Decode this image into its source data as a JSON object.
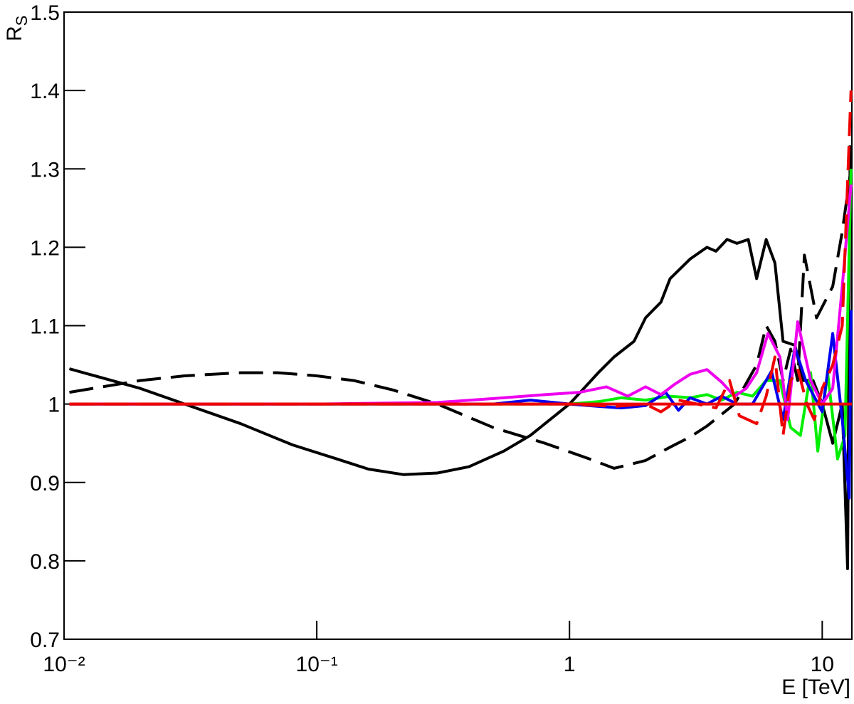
{
  "chart_data": {
    "type": "line",
    "xlabel": "E [TeV]",
    "ylabel": [
      "R",
      "S"
    ],
    "xscale": "log",
    "xlim": [
      0.01,
      13.1
    ],
    "ylim": [
      0.7,
      1.5
    ],
    "xticks": [
      {
        "value": 0.01,
        "label": "10⁻²"
      },
      {
        "value": 0.1,
        "label": "10⁻¹"
      },
      1,
      10
    ],
    "yticks": [
      0.7,
      0.8,
      0.9,
      1,
      1.1,
      1.2,
      1.3,
      1.4,
      1.5
    ],
    "series": [
      {
        "color": "#000000",
        "style": "solid",
        "x": [
          0.0105,
          0.02,
          0.03,
          0.05,
          0.08,
          0.12,
          0.16,
          0.22,
          0.3,
          0.4,
          0.55,
          0.7,
          1,
          1.3,
          1.5,
          1.8,
          2,
          2.3,
          2.5,
          3,
          3.5,
          3.8,
          4.2,
          4.6,
          5.1,
          5.5,
          6,
          6.5,
          7,
          7.8,
          8.4,
          9.2,
          10,
          11,
          12,
          12.6,
          12.9
        ],
        "values": [
          1.045,
          1.02,
          1.0,
          0.975,
          0.948,
          0.93,
          0.917,
          0.91,
          0.912,
          0.92,
          0.94,
          0.96,
          1.0,
          1.04,
          1.06,
          1.08,
          1.11,
          1.13,
          1.16,
          1.185,
          1.2,
          1.195,
          1.21,
          1.205,
          1.21,
          1.16,
          1.21,
          1.18,
          1.08,
          1.075,
          1.03,
          1.03,
          1.0,
          0.95,
          1.0,
          0.79,
          1.33
        ]
      },
      {
        "color": "#000000",
        "style": "dashed",
        "x": [
          0.0105,
          0.02,
          0.03,
          0.05,
          0.07,
          0.1,
          0.14,
          0.2,
          0.3,
          0.5,
          0.8,
          1.2,
          1.5,
          2,
          2.5,
          3,
          3.5,
          4.5,
          5.5,
          6,
          6.5,
          7,
          7.5,
          8,
          8.5,
          9.5,
          11,
          12,
          13
        ],
        "values": [
          1.015,
          1.03,
          1.036,
          1.04,
          1.04,
          1.036,
          1.03,
          1.018,
          1.0,
          0.97,
          0.95,
          0.93,
          0.918,
          0.928,
          0.945,
          0.958,
          0.972,
          1.0,
          1.05,
          1.1,
          1.08,
          1.03,
          1.07,
          1.03,
          1.19,
          1.11,
          1.15,
          1.22,
          1.3
        ]
      },
      {
        "color": "#00ee00",
        "style": "solid",
        "x": [
          0.0105,
          0.1,
          0.5,
          1,
          1.3,
          1.6,
          2,
          2.5,
          3,
          3.5,
          4,
          4.6,
          5.3,
          6,
          6.8,
          7.5,
          8.2,
          9,
          9.6,
          10.5,
          11.5,
          12.3,
          13
        ],
        "values": [
          1.0,
          1.0,
          1.0,
          1.0,
          1.003,
          1.008,
          1.005,
          1.01,
          1.008,
          1.012,
          1.005,
          1.015,
          1.01,
          1.03,
          1.03,
          0.97,
          0.96,
          1.04,
          0.94,
          1.04,
          0.93,
          0.96,
          1.3
        ]
      },
      {
        "color": "#0000ee",
        "style": "solid",
        "x": [
          0.0105,
          0.1,
          0.5,
          0.7,
          1,
          1.3,
          1.6,
          2,
          2.4,
          2.7,
          3,
          3.5,
          4,
          4.6,
          5.3,
          6.3,
          7,
          7.8,
          8.6,
          10,
          11,
          12,
          12.8,
          13
        ],
        "values": [
          1.0,
          1.0,
          1.0,
          1.005,
          1.0,
          0.997,
          0.995,
          0.998,
          1.015,
          0.992,
          1.008,
          1.0,
          1.01,
          1.0,
          1.0,
          1.042,
          0.98,
          1.072,
          1.03,
          0.99,
          1.09,
          0.98,
          0.88,
          1.12
        ]
      },
      {
        "color": "#ee00ee",
        "style": "solid",
        "x": [
          0.0105,
          0.1,
          0.3,
          0.5,
          0.8,
          1.1,
          1.4,
          1.7,
          2,
          2.3,
          2.6,
          3,
          3.5,
          4,
          4.5,
          5,
          5.5,
          6.1,
          6.8,
          7.3,
          8,
          9,
          10,
          11,
          12,
          13
        ],
        "values": [
          1.0,
          1.0,
          1.002,
          1.007,
          1.012,
          1.015,
          1.022,
          1.01,
          1.022,
          1.012,
          1.025,
          1.038,
          1.044,
          1.028,
          1.01,
          1.02,
          1.04,
          1.09,
          1.06,
          0.98,
          1.105,
          1.03,
          1.0,
          1.02,
          1.15,
          1.28
        ]
      },
      {
        "color": "#ee0000",
        "style": "solid",
        "x": [
          0.0105,
          13.1
        ],
        "values": [
          1.0,
          1.0
        ]
      },
      {
        "color": "#ee0000",
        "style": "dashed",
        "x": [
          0.0105,
          0.1,
          0.5,
          1,
          1.5,
          2,
          2.3,
          2.7,
          3.2,
          3.8,
          4.3,
          4.7,
          5.5,
          6,
          6.5,
          7,
          7.5,
          8,
          8.7,
          9.3,
          10,
          11,
          12,
          13
        ],
        "values": [
          1.0,
          1.0,
          1.0,
          1.0,
          0.997,
          1.0,
          0.99,
          1.005,
          1.0,
          0.995,
          1.03,
          0.985,
          0.975,
          1.01,
          1.06,
          0.96,
          1.03,
          1.045,
          1.0,
          0.98,
          1.02,
          1.05,
          1.1,
          1.4
        ]
      }
    ]
  }
}
